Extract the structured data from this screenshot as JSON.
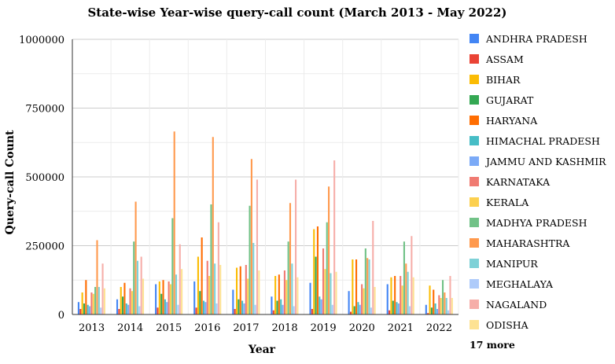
{
  "chart_data": {
    "type": "bar",
    "title": "State-wise Year-wise query-call count (March 2013 - May 2022)",
    "xlabel": "Year",
    "ylabel": "Query-call Count",
    "ylim": [
      0,
      1000000
    ],
    "yticks": [
      0,
      250000,
      500000,
      750000,
      1000000
    ],
    "ytick_labels": [
      "0",
      "250000",
      "500000",
      "750000",
      "1000000"
    ],
    "grid": true,
    "legend_position": "right",
    "legend_more": "17 more",
    "categories": [
      "2013",
      "2014",
      "2015",
      "2016",
      "2017",
      "2018",
      "2019",
      "2020",
      "2021",
      "2022"
    ],
    "series": [
      {
        "name": "ANDHRA PRADESH",
        "color": "#4285f4",
        "values": [
          45000,
          55000,
          110000,
          120000,
          90000,
          65000,
          115000,
          85000,
          110000,
          35000
        ]
      },
      {
        "name": "ASSAM",
        "color": "#ea4335",
        "values": [
          20000,
          20000,
          25000,
          25000,
          20000,
          15000,
          20000,
          10000,
          15000,
          5000
        ]
      },
      {
        "name": "BIHAR",
        "color": "#fbbc04",
        "values": [
          80000,
          100000,
          120000,
          210000,
          170000,
          140000,
          310000,
          200000,
          135000,
          105000
        ]
      },
      {
        "name": "GUJARAT",
        "color": "#34a853",
        "values": [
          40000,
          65000,
          75000,
          85000,
          55000,
          50000,
          210000,
          30000,
          50000,
          25000
        ]
      },
      {
        "name": "HARYANA",
        "color": "#ff6d01",
        "values": [
          125000,
          115000,
          125000,
          280000,
          175000,
          145000,
          320000,
          200000,
          140000,
          90000
        ]
      },
      {
        "name": "HIMACHAL PRADESH",
        "color": "#46bdc6",
        "values": [
          35000,
          40000,
          55000,
          50000,
          50000,
          55000,
          65000,
          45000,
          45000,
          40000
        ]
      },
      {
        "name": "JAMMU AND KASHMIR",
        "color": "#7baaf7",
        "values": [
          30000,
          35000,
          45000,
          45000,
          40000,
          35000,
          55000,
          35000,
          40000,
          20000
        ]
      },
      {
        "name": "KARNATAKA",
        "color": "#f07b72",
        "values": [
          80000,
          95000,
          120000,
          195000,
          180000,
          160000,
          240000,
          110000,
          140000,
          70000
        ]
      },
      {
        "name": "KERALA",
        "color": "#fcd04f",
        "values": [
          75000,
          85000,
          110000,
          140000,
          130000,
          125000,
          165000,
          95000,
          105000,
          60000
        ]
      },
      {
        "name": "MADHYA PRADESH",
        "color": "#71c287",
        "values": [
          100000,
          265000,
          350000,
          400000,
          395000,
          265000,
          335000,
          240000,
          265000,
          125000
        ]
      },
      {
        "name": "MAHARASHTRA",
        "color": "#ff994d",
        "values": [
          270000,
          410000,
          665000,
          645000,
          565000,
          405000,
          465000,
          205000,
          185000,
          80000
        ]
      },
      {
        "name": "MANIPUR",
        "color": "#7ed1d7",
        "values": [
          100000,
          195000,
          145000,
          185000,
          260000,
          185000,
          150000,
          200000,
          155000,
          60000
        ]
      },
      {
        "name": "MEGHALAYA",
        "color": "#aecbfa",
        "values": [
          25000,
          30000,
          35000,
          40000,
          35000,
          30000,
          35000,
          25000,
          30000,
          15000
        ]
      },
      {
        "name": "NAGALAND",
        "color": "#f6aea9",
        "values": [
          185000,
          210000,
          255000,
          335000,
          490000,
          490000,
          560000,
          340000,
          285000,
          140000
        ]
      },
      {
        "name": "ODISHA",
        "color": "#fde293",
        "values": [
          95000,
          130000,
          165000,
          180000,
          160000,
          135000,
          155000,
          100000,
          135000,
          60000
        ]
      }
    ]
  }
}
